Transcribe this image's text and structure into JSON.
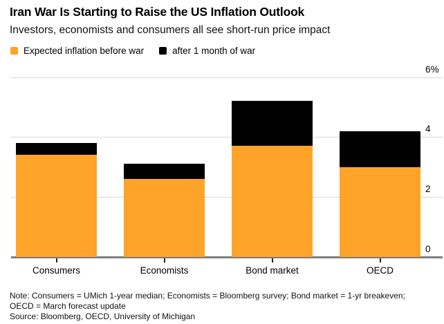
{
  "header": {
    "title": "Iran War Is Starting to Raise the US Inflation Outlook",
    "subtitle": "Investors, economists and consumers all see short-run price impact"
  },
  "legend": {
    "items": [
      {
        "label": "Expected inflation before war",
        "color": "#FDA429"
      },
      {
        "label": "after 1 month of war",
        "color": "#000000"
      }
    ]
  },
  "chart_data": {
    "type": "bar",
    "stacked": true,
    "title": "Iran War Is Starting to Raise the US Inflation Outlook",
    "subtitle": "Investors, economists and consumers all see short-run price impact",
    "categories": [
      "Consumers",
      "Economists",
      "Bond market",
      "OECD"
    ],
    "series": [
      {
        "name": "Expected inflation before war",
        "color": "#FDA429",
        "values": [
          3.4,
          2.6,
          3.7,
          3.0
        ]
      },
      {
        "name": "after 1 month of war",
        "color": "#000000",
        "values": [
          0.4,
          0.5,
          1.5,
          1.2
        ]
      }
    ],
    "stacked_totals": [
      3.8,
      3.1,
      5.2,
      4.2
    ],
    "xlabel": "",
    "ylabel": "",
    "ylim": [
      0,
      6
    ],
    "yticks": [
      {
        "value": 0,
        "label": "0"
      },
      {
        "value": 2,
        "label": "2"
      },
      {
        "value": 4,
        "label": "4"
      },
      {
        "value": 6,
        "label": "6%"
      }
    ],
    "grid": "horizontal",
    "legend_position": "top-left",
    "tick_label_side": "right"
  },
  "footer": {
    "note_line1": "Note: Consumers = UMich 1-year median; Economists = Bloomberg survey; Bond market = 1-yr breakeven;",
    "note_line2": "OECD = March forecast update",
    "source": "Source: Bloomberg, OECD, University of Michigan"
  },
  "colors": {
    "before_war": "#FDA429",
    "after_war": "#000000",
    "gridline": "#d8d8d8",
    "baseline": "#7d7d7d",
    "background": "#ffffff",
    "text": "#000000"
  }
}
